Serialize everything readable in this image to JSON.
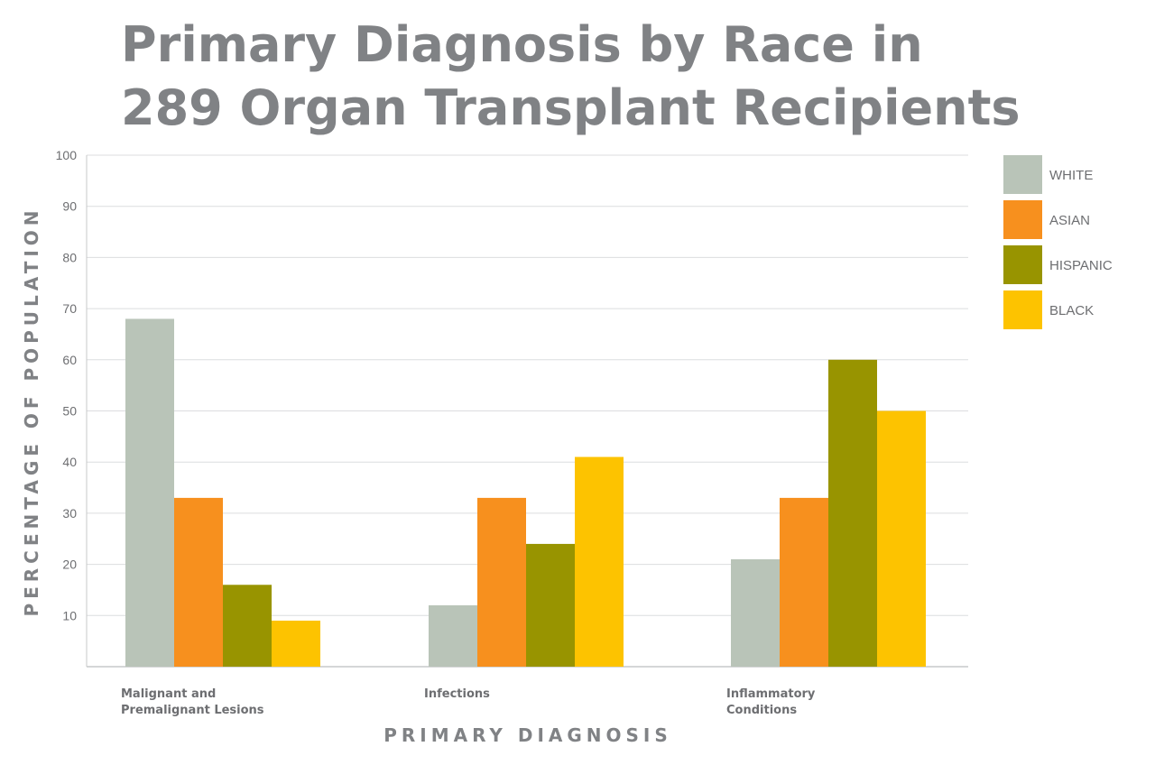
{
  "chart_data": {
    "type": "bar",
    "title_lines": [
      "Primary Diagnosis by Race in",
      "289 Organ Transplant Recipients"
    ],
    "xlabel": "PRIMARY DIAGNOSIS",
    "ylabel": "PERCENTAGE OF POPULATION",
    "ylim": [
      0,
      100
    ],
    "yticks": [
      10,
      20,
      30,
      40,
      50,
      60,
      70,
      80,
      90,
      100
    ],
    "grid": true,
    "legend_position": "right",
    "categories": [
      [
        "Malignant and",
        "Premalignant Lesions"
      ],
      [
        "Infections"
      ],
      [
        "Inflammatory",
        "Conditions"
      ]
    ],
    "series": [
      {
        "name": "WHITE",
        "color": "#b9c4b8",
        "values": [
          68,
          12,
          21
        ]
      },
      {
        "name": "ASIAN",
        "color": "#f7901e",
        "values": [
          33,
          33,
          33
        ]
      },
      {
        "name": "HISPANIC",
        "color": "#989400",
        "values": [
          16,
          24,
          60
        ]
      },
      {
        "name": "BLACK",
        "color": "#fdc300",
        "values": [
          9,
          41,
          50
        ]
      }
    ]
  }
}
